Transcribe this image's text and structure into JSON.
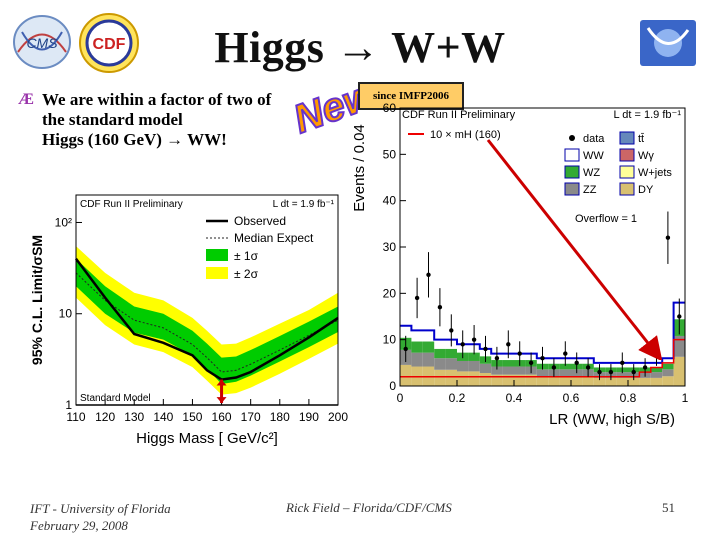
{
  "slide": {
    "title": "Higgs → W+W",
    "bullet_mark": "Æ",
    "bullet_lines": [
      "We are within a factor of two of",
      "the standard model",
      "Higgs (160 GeV) → WW!"
    ],
    "since_label": "since IMFP2006",
    "new_label": "New",
    "footer_left_1": "IFT - University of Florida",
    "footer_left_2": "February 29, 2008",
    "footer_center": "Rick Field – Florida/CDF/CMS",
    "page_number": "51",
    "logos": [
      "CMS",
      "CDF"
    ]
  },
  "colors": {
    "band1": "#00cc00",
    "band2": "#ffff00",
    "arrow": "#cc0000",
    "hist_red": "#ee0000",
    "hist_blue": "#0000cc"
  },
  "chart_data": [
    {
      "type": "line",
      "title": "CDF Run II Preliminary",
      "lumi": "L dt = 1.9 fb⁻¹",
      "xlabel": "Higgs Mass [ GeV/c²]",
      "ylabel": "95% C.L. Limit/σSM",
      "x_ticks": [
        "110",
        "120",
        "130",
        "140",
        "150",
        "160",
        "170",
        "180",
        "190",
        "200"
      ],
      "y_ticks": [
        "1",
        "10",
        "10²"
      ],
      "xlim": [
        110,
        200
      ],
      "ylim_log": [
        1,
        200
      ],
      "legend": [
        "Observed",
        "Median Expect",
        "± 1σ",
        "± 2σ"
      ],
      "annotation": "Standard Model",
      "x": [
        110,
        120,
        130,
        140,
        150,
        155,
        160,
        165,
        170,
        180,
        190,
        200
      ],
      "observed": [
        40,
        15,
        6.0,
        4.8,
        3.5,
        2.4,
        1.9,
        2.0,
        2.3,
        3.5,
        5.5,
        9.0
      ],
      "expected": [
        28,
        14,
        8.5,
        7.0,
        4.6,
        3.3,
        2.3,
        2.4,
        2.8,
        4.0,
        5.8,
        8.5
      ],
      "band1_lo": [
        20,
        10,
        6.2,
        5.2,
        3.5,
        2.5,
        1.7,
        1.8,
        2.1,
        3.0,
        4.3,
        6.3
      ],
      "band1_hi": [
        40,
        20,
        12,
        10,
        6.5,
        4.7,
        3.3,
        3.4,
        4.0,
        5.7,
        8.2,
        12
      ],
      "band2_lo": [
        15,
        7.5,
        4.6,
        3.8,
        2.6,
        1.85,
        1.3,
        1.35,
        1.55,
        2.2,
        3.2,
        4.7
      ],
      "band2_hi": [
        55,
        28,
        17,
        14,
        9,
        6.5,
        4.6,
        4.7,
        5.5,
        7.8,
        11,
        17
      ],
      "highlight_mass": 160
    },
    {
      "type": "bar",
      "title": "CDF Run II Preliminary",
      "lumi": "L dt = 1.9 fb⁻¹",
      "xlabel": "LR (WW, high S/B)",
      "ylabel": "Events / 0.04",
      "x_ticks": [
        "0",
        "0.2",
        "0.4",
        "0.6",
        "0.8",
        "1"
      ],
      "y_ticks": [
        "0",
        "10",
        "20",
        "30",
        "40",
        "50",
        "60"
      ],
      "xlim": [
        0,
        1
      ],
      "ylim": [
        0,
        60
      ],
      "legend": [
        "10 × mH (160)",
        "data",
        "tt̄",
        "WW",
        "Wγ",
        "WZ",
        "W+jets",
        "ZZ",
        "DY"
      ],
      "overflow_label": "Overflow = 1",
      "bin_width": 0.04,
      "data": [
        8,
        19,
        24,
        17,
        12,
        9,
        10,
        8,
        6,
        9,
        7,
        5,
        6,
        4,
        7,
        5,
        4,
        3,
        3,
        5,
        3,
        4,
        7,
        32,
        15
      ],
      "ww_total": [
        13,
        12,
        12,
        10,
        10,
        9,
        9,
        8,
        7,
        7,
        7,
        7,
        6,
        6,
        6,
        6,
        6,
        5,
        5,
        5,
        5,
        5,
        5,
        6,
        18
      ],
      "signal_10x": [
        2,
        2,
        2,
        2,
        2,
        2,
        2,
        2,
        2,
        2,
        2,
        2,
        2,
        2,
        2,
        2,
        2,
        2,
        2,
        2,
        2,
        3,
        4,
        5,
        10
      ],
      "highlight_arrow": "signal excess at high LR"
    }
  ]
}
